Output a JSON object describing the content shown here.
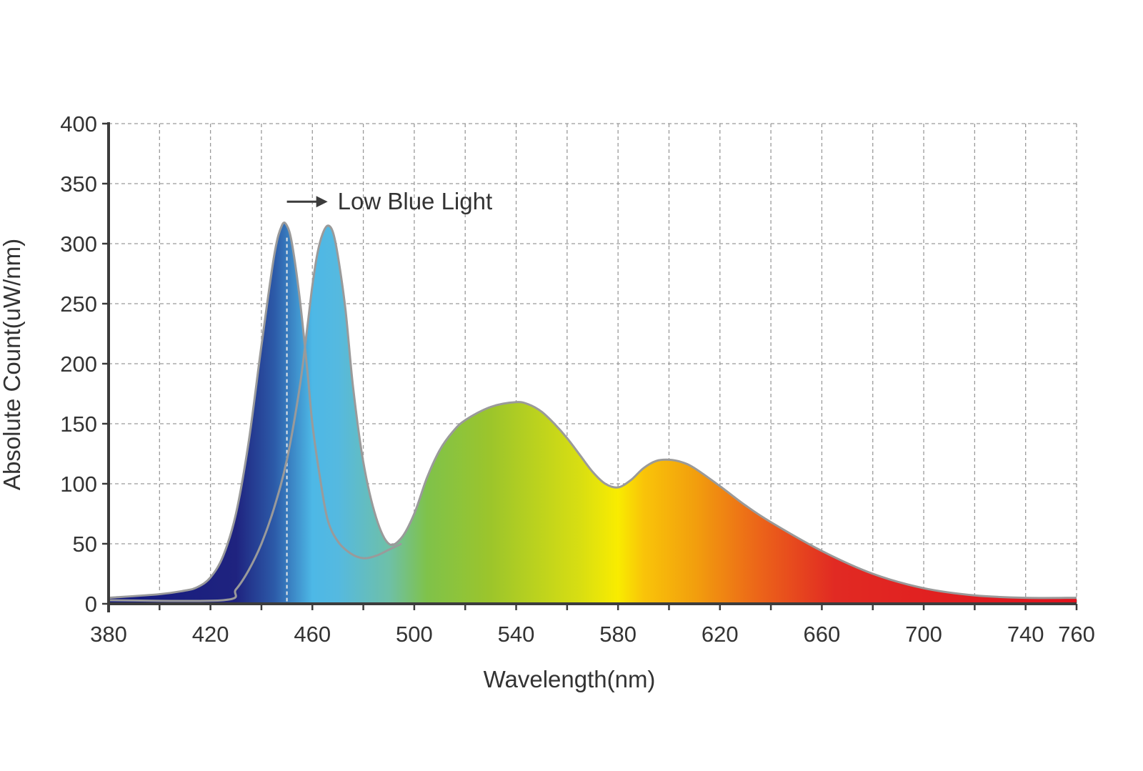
{
  "chart_data": {
    "type": "area",
    "title": "",
    "xlabel": "Wavelength(nm)",
    "ylabel": "Absolute Count(uW/nm)",
    "xlim": [
      380,
      760
    ],
    "ylim": [
      0,
      400
    ],
    "xticks": [
      380,
      420,
      460,
      500,
      540,
      580,
      620,
      660,
      700,
      740,
      760
    ],
    "yticks": [
      0,
      50,
      100,
      150,
      200,
      250,
      300,
      350,
      400
    ],
    "grid": true,
    "annotation": {
      "text": "Low Blue Light",
      "arrow_from_x": 450,
      "arrow_to_x": 466,
      "y": 335,
      "marker_x": 450
    },
    "series": [
      {
        "role": "standard",
        "x": [
          380,
          400,
          410,
          415,
          420,
          425,
          430,
          435,
          440,
          445,
          448,
          450,
          452,
          455,
          458,
          460,
          463,
          466,
          470,
          475,
          480,
          485,
          490,
          495
        ],
        "y": [
          5,
          8,
          11,
          14,
          22,
          40,
          75,
          135,
          215,
          290,
          315,
          315,
          300,
          255,
          195,
          150,
          105,
          70,
          52,
          42,
          38,
          40,
          45,
          50
        ]
      },
      {
        "role": "low_blue",
        "x": [
          380,
          425,
          430,
          435,
          440,
          445,
          450,
          455,
          458,
          460,
          462,
          464,
          466,
          468,
          470,
          473,
          476,
          480,
          485,
          490,
          495,
          500,
          505,
          510,
          515,
          520,
          530,
          540,
          545,
          550,
          555,
          560,
          565,
          570,
          575,
          580,
          585,
          590,
          595,
          600,
          605,
          610,
          620,
          630,
          640,
          660,
          680,
          700,
          720,
          740,
          760
        ],
        "y": [
          3,
          3,
          12,
          28,
          50,
          80,
          120,
          180,
          230,
          265,
          292,
          308,
          315,
          310,
          290,
          245,
          180,
          118,
          72,
          50,
          55,
          75,
          105,
          128,
          143,
          153,
          164,
          168,
          166,
          160,
          150,
          138,
          124,
          110,
          100,
          97,
          103,
          113,
          119,
          120,
          118,
          113,
          98,
          82,
          68,
          44,
          25,
          13,
          7,
          5,
          5
        ]
      }
    ],
    "gradient_stops": [
      {
        "nm": 380,
        "color": "#141a80"
      },
      {
        "nm": 430,
        "color": "#1f237f"
      },
      {
        "nm": 445,
        "color": "#2c5aa8"
      },
      {
        "nm": 460,
        "color": "#4db8e6"
      },
      {
        "nm": 470,
        "color": "#55b9e0"
      },
      {
        "nm": 490,
        "color": "#6ec0a8"
      },
      {
        "nm": 505,
        "color": "#7fc24a"
      },
      {
        "nm": 530,
        "color": "#9cc52b"
      },
      {
        "nm": 565,
        "color": "#d8de12"
      },
      {
        "nm": 580,
        "color": "#f9ec00"
      },
      {
        "nm": 590,
        "color": "#f9c409"
      },
      {
        "nm": 610,
        "color": "#f29f0d"
      },
      {
        "nm": 635,
        "color": "#ec6519"
      },
      {
        "nm": 665,
        "color": "#e12a23"
      },
      {
        "nm": 760,
        "color": "#e1121d"
      }
    ]
  }
}
